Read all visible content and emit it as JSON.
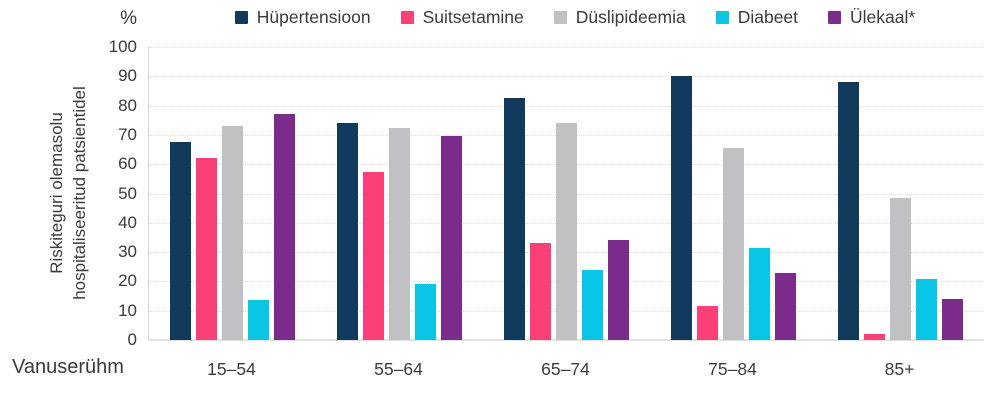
{
  "header": {
    "unit_label": "%",
    "legend": [
      {
        "label": "Hüpertensioon",
        "color": "#123a5c",
        "icon": "legend-swatch-navy"
      },
      {
        "label": "Suitsetamine",
        "color": "#fb4077",
        "icon": "legend-swatch-pink"
      },
      {
        "label": "Düslipideemia",
        "color": "#c1c1c3",
        "icon": "legend-swatch-gray"
      },
      {
        "label": "Diabeet",
        "color": "#0ac6e6",
        "icon": "legend-swatch-cyan"
      },
      {
        "label": "Ülekaal*",
        "color": "#7b2b8b",
        "icon": "legend-swatch-purple"
      }
    ]
  },
  "axes": {
    "y_title_line1": "Riskiteguri olemasolu",
    "y_title_line2": "hospitaliseeritud patsientidel",
    "x_title": "Vanuserühm",
    "y_ticks": [
      0,
      10,
      20,
      30,
      40,
      50,
      60,
      70,
      80,
      90,
      100
    ]
  },
  "colors": {
    "gridline": "#dcdcdc",
    "axis_line": "#d6d6d6",
    "text": "#3b3b3b"
  },
  "chart_data": {
    "type": "bar",
    "title": "",
    "xlabel": "Vanuserühm",
    "ylabel": "Riskiteguri olemasolu hospitaliseeritud patsientidel (%)",
    "ylim": [
      0,
      100
    ],
    "grid": true,
    "legend_position": "top",
    "categories": [
      "15–54",
      "55–64",
      "65–74",
      "75–84",
      "85+"
    ],
    "series": [
      {
        "name": "Hüpertensioon",
        "color": "#123a5c",
        "values": [
          67.5,
          74,
          82.5,
          90,
          88
        ]
      },
      {
        "name": "Suitsetamine",
        "color": "#fb4077",
        "values": [
          62,
          57.5,
          33,
          11.5,
          2
        ]
      },
      {
        "name": "Düslipideemia",
        "color": "#c1c1c3",
        "values": [
          73,
          72.5,
          74,
          65.5,
          48.5
        ]
      },
      {
        "name": "Diabeet",
        "color": "#0ac6e6",
        "values": [
          13.5,
          19,
          24,
          31.5,
          21
        ]
      },
      {
        "name": "Ülekaal*",
        "color": "#7b2b8b",
        "values": [
          77,
          69.5,
          34,
          23,
          14
        ]
      }
    ]
  }
}
